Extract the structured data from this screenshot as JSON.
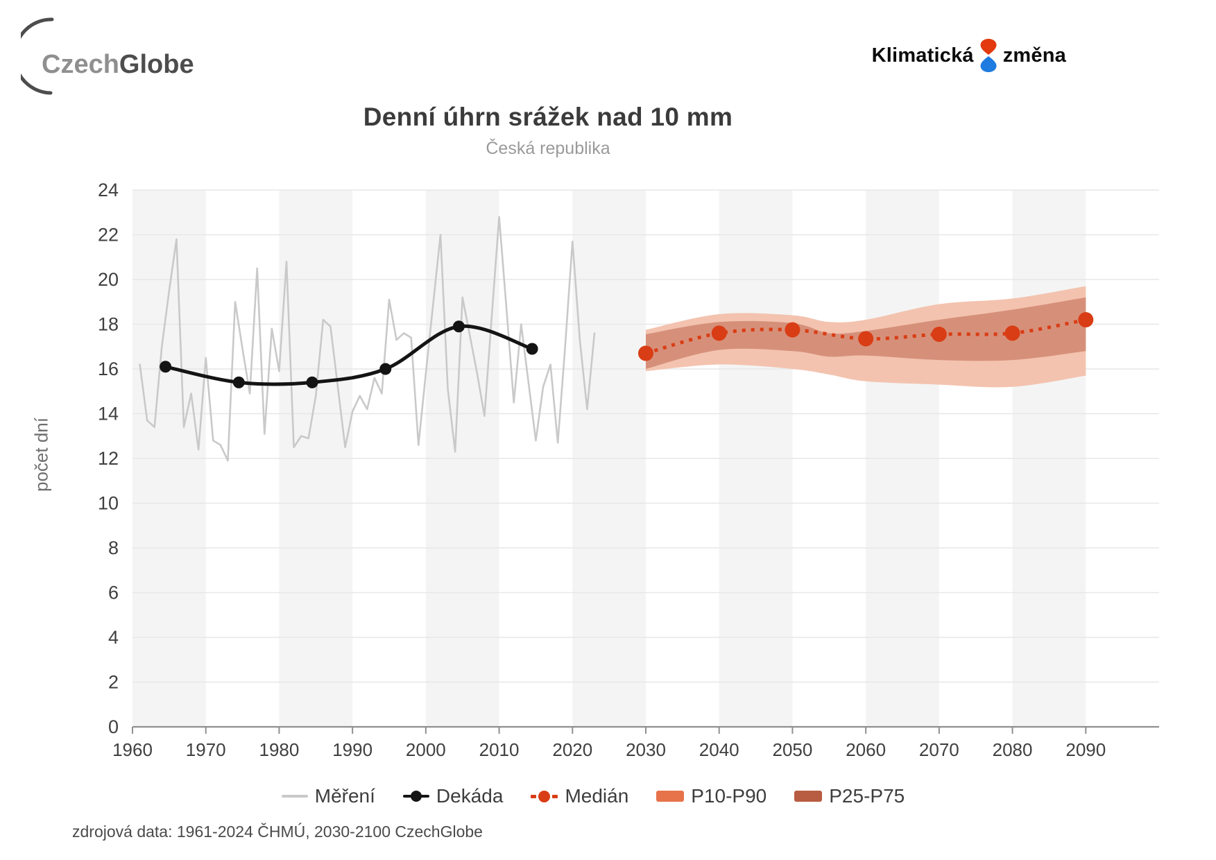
{
  "header": {
    "logo_czechglobe": {
      "part1": "Czech",
      "part2": "Globe",
      "color_part1": "#8f8f8f",
      "color_part2": "#4d4d4d",
      "arc_color": "#4d4d4d"
    },
    "logo_klimaticka": {
      "word1": "Klimatická",
      "word2": "změna",
      "drop_top_color": "#e23a0e",
      "drop_bottom_color": "#1e7ce0"
    }
  },
  "source_note": "zdrojová data: 1961-2024 ČHMÚ, 2030-2100 CzechGlobe",
  "legend": [
    {
      "label": "Měření",
      "type": "line",
      "color": "#c9c9c9"
    },
    {
      "label": "Dekáda",
      "type": "line-dot",
      "color": "#141414"
    },
    {
      "label": "Medián",
      "type": "dash-dot",
      "color": "#d93d15"
    },
    {
      "label": "P10-P90",
      "type": "swatch",
      "color": "#e7734a"
    },
    {
      "label": "P25-P75",
      "type": "swatch",
      "color": "#b85c42"
    }
  ],
  "chart_data": {
    "type": "line",
    "title": "Denní úhrn srážek nad 10 mm",
    "subtitle": "Česká republika",
    "xlabel": "",
    "ylabel": "počet dní",
    "xlim": [
      1960,
      2100
    ],
    "ylim": [
      0,
      24
    ],
    "x_ticks": [
      1960,
      1970,
      1980,
      1990,
      2000,
      2010,
      2020,
      2030,
      2040,
      2050,
      2060,
      2070,
      2080,
      2090
    ],
    "y_ticks": [
      0,
      2,
      4,
      6,
      8,
      10,
      12,
      14,
      16,
      18,
      20,
      22,
      24
    ],
    "grid": true,
    "legend_position": "bottom",
    "colors": {
      "stripe": "#f4f4f4",
      "gridline": "#e7e7e7",
      "axis": "#8f8f8f",
      "tick_label": "#3f3f3f"
    },
    "background_stripes": {
      "first_start": 1960,
      "band_years": 10,
      "repeat_years": 20
    },
    "series": [
      {
        "id": "mereni",
        "name": "Měření",
        "kind": "polyline",
        "color": "#c9c9c9",
        "width": 2.6,
        "x_start": 1961,
        "x_step": 1,
        "values": [
          16.2,
          13.7,
          13.4,
          17.0,
          19.5,
          21.8,
          13.4,
          14.9,
          12.4,
          16.5,
          12.8,
          12.6,
          11.9,
          19.0,
          16.9,
          14.9,
          20.5,
          13.1,
          17.8,
          15.9,
          20.8,
          12.5,
          13.0,
          12.9,
          14.8,
          18.2,
          17.9,
          15.2,
          12.5,
          14.1,
          14.8,
          14.2,
          15.6,
          14.9,
          19.1,
          17.3,
          17.6,
          17.4,
          12.6,
          15.8,
          18.9,
          22.0,
          15.1,
          12.3,
          19.2,
          17.5,
          15.8,
          13.9,
          18.4,
          22.8,
          18.7,
          14.5,
          18.0,
          15.4,
          12.8,
          15.2,
          16.2,
          12.7,
          17.0,
          21.7,
          17.3,
          14.2,
          17.6
        ]
      },
      {
        "id": "dekada",
        "name": "Dekáda",
        "kind": "smooth-dots",
        "color": "#141414",
        "width": 5,
        "dot_radius": 8.5,
        "x": [
          1964.5,
          1974.5,
          1984.5,
          1994.5,
          2004.5,
          2014.5
        ],
        "values": [
          16.1,
          15.4,
          15.4,
          16.0,
          17.9,
          16.9
        ]
      },
      {
        "id": "median",
        "name": "Medián",
        "kind": "dotted-smooth-dots",
        "color": "#d93d15",
        "width": 5,
        "dash": "5 8",
        "dot_radius": 11,
        "x": [
          2030,
          2040,
          2050,
          2060,
          2070,
          2080,
          2090
        ],
        "values": [
          16.7,
          17.6,
          17.75,
          17.35,
          17.55,
          17.6,
          18.2
        ]
      }
    ],
    "bands": [
      {
        "id": "p10_p90",
        "name": "P10-P90",
        "color": "#f3c3af",
        "x": [
          2030,
          2040,
          2050,
          2055,
          2060,
          2070,
          2080,
          2090
        ],
        "low": [
          15.9,
          16.2,
          16.0,
          15.75,
          15.45,
          15.3,
          15.2,
          15.7
        ],
        "high": [
          17.75,
          18.45,
          18.4,
          18.1,
          18.2,
          18.9,
          19.15,
          19.7
        ]
      },
      {
        "id": "p25_p75",
        "name": "P25-P75",
        "color": "#d6907a",
        "x": [
          2030,
          2040,
          2050,
          2055,
          2060,
          2070,
          2080,
          2090
        ],
        "low": [
          16.0,
          16.85,
          16.8,
          16.55,
          16.6,
          16.4,
          16.4,
          16.8
        ],
        "high": [
          17.55,
          18.1,
          18.05,
          17.6,
          17.7,
          18.2,
          18.65,
          19.2
        ]
      }
    ]
  }
}
